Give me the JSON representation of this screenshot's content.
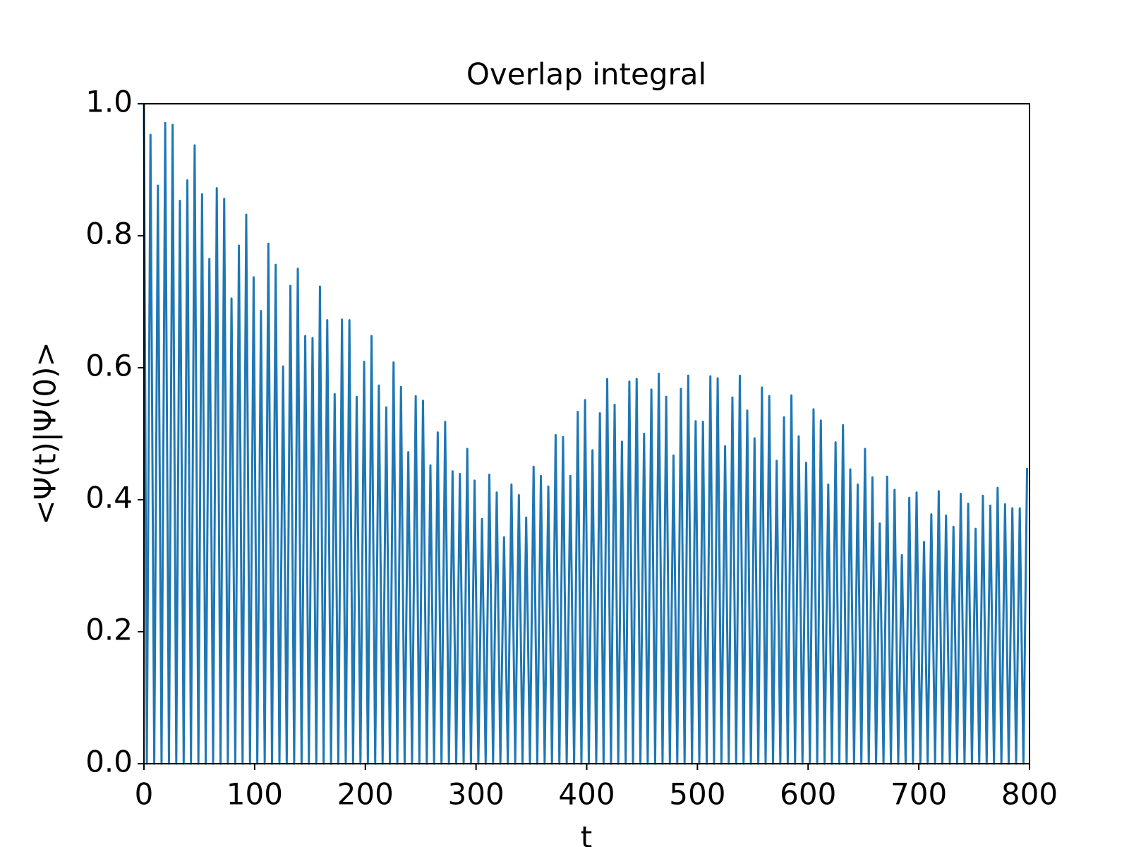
{
  "chart_data": {
    "type": "line",
    "title": "Overlap integral",
    "xlabel": "t",
    "ylabel": "<Ψ(t)|Ψ(0)>",
    "color": "#1f77b4",
    "xlim": [
      0,
      800
    ],
    "xticks": [
      0,
      100,
      200,
      300,
      400,
      500,
      600,
      700,
      800
    ],
    "ylim": [
      0,
      1
    ],
    "yticks": [
      {
        "value": 0,
        "label": "0.0"
      },
      0.2,
      0.4,
      0.6,
      0.8,
      {
        "value": 1,
        "label": "1.0"
      }
    ],
    "grid": false,
    "x": [
      0,
      2.6,
      5.9,
      9.3,
      12.6,
      15.9,
      19.2,
      22.6,
      25.9,
      29.2,
      32.5,
      35.9,
      39.2,
      42.5,
      45.8,
      49.2,
      52.5,
      55.8,
      59.1,
      62.5,
      65.8,
      69.2,
      72.5,
      75.8,
      79.1,
      82.5,
      85.8,
      89.1,
      92.4,
      95.8,
      99.1,
      102.4,
      105.7,
      109.1,
      112.4,
      115.7,
      119.0,
      122.4,
      125.7,
      129.0,
      132.3,
      135.7,
      139.0,
      142.4,
      145.7,
      149.0,
      152.3,
      155.7,
      159.0,
      162.3,
      165.6,
      169.0,
      172.3,
      175.6,
      178.9,
      182.3,
      185.6,
      188.9,
      192.2,
      195.6,
      198.9,
      202.3,
      205.6,
      208.9,
      212.2,
      215.6,
      218.9,
      222.2,
      225.5,
      228.9,
      232.2,
      235.5,
      238.8,
      242.2,
      245.5,
      248.8,
      252.1,
      255.5,
      258.8,
      262.1,
      265.4,
      268.8,
      272.1,
      275.5,
      278.8,
      282.1,
      285.4,
      288.8,
      292.1,
      295.4,
      298.7,
      302.1,
      305.4,
      308.7,
      312.0,
      315.4,
      318.7,
      322.0,
      325.3,
      328.7,
      332.0,
      335.4,
      338.7,
      342.0,
      345.3,
      348.7,
      352.0,
      355.3,
      358.6,
      362.0,
      365.3,
      368.6,
      371.9,
      375.3,
      378.6,
      381.9,
      385.2,
      388.6,
      391.9,
      395.2,
      398.5,
      401.9,
      405.2,
      408.6,
      411.9,
      415.2,
      418.5,
      421.9,
      425.2,
      428.5,
      431.8,
      435.2,
      438.5,
      441.8,
      445.1,
      448.5,
      451.8,
      455.1,
      458.4,
      461.8,
      465.1,
      468.5,
      471.8,
      475.1,
      478.4,
      481.8,
      485.1,
      488.4,
      491.7,
      495.1,
      498.4,
      501.7,
      505.0,
      508.4,
      511.7,
      515.0,
      518.3,
      521.7,
      525.0,
      528.3,
      531.6,
      535.0,
      538.3,
      541.7,
      545.0,
      548.3,
      551.6,
      555.0,
      558.3,
      561.6,
      564.9,
      568.3,
      571.6,
      574.9,
      578.2,
      581.6,
      584.9,
      588.2,
      591.5,
      594.9,
      598.2,
      601.6,
      604.9,
      608.2,
      611.5,
      614.9,
      618.2,
      621.5,
      624.8,
      628.2,
      631.5,
      634.8,
      638.1,
      641.5,
      644.8,
      648.1,
      651.4,
      654.8,
      658.1,
      661.4,
      664.7,
      668.1,
      671.4,
      674.8,
      678.1,
      681.4,
      684.7,
      688.1,
      691.4,
      694.7,
      698.0,
      701.4,
      704.7,
      708.0,
      711.3,
      714.7,
      718.0,
      721.3,
      724.6,
      728.0,
      731.3,
      734.6,
      737.9,
      741.3,
      744.6,
      748.0,
      751.3,
      754.6,
      757.9,
      761.3,
      764.6,
      767.9,
      771.2,
      774.6,
      777.9,
      781.2,
      784.5,
      787.9,
      791.2,
      794.5,
      797.8
    ],
    "values": [
      1,
      0,
      0.953,
      0,
      0.876,
      0,
      0.971,
      0,
      0.968,
      0,
      0.853,
      0,
      0.884,
      0,
      0.937,
      0,
      0.863,
      0,
      0.765,
      0,
      0.872,
      0,
      0.856,
      0,
      0.705,
      0,
      0.785,
      0,
      0.832,
      0,
      0.737,
      0,
      0.686,
      0,
      0.788,
      0,
      0.756,
      0,
      0.602,
      0,
      0.724,
      0,
      0.75,
      0,
      0.648,
      0,
      0.645,
      0,
      0.723,
      0,
      0.672,
      0,
      0.56,
      0,
      0.673,
      0,
      0.672,
      0,
      0.556,
      0,
      0.609,
      0,
      0.648,
      0,
      0.573,
      0,
      0.54,
      0,
      0.608,
      0,
      0.571,
      0,
      0.472,
      0,
      0.557,
      0,
      0.55,
      0,
      0.452,
      0,
      0.502,
      0,
      0.518,
      0,
      0.443,
      0,
      0.439,
      0,
      0.477,
      0,
      0.429,
      0,
      0.371,
      0,
      0.438,
      0,
      0.411,
      0,
      0.343,
      0,
      0.423,
      0,
      0.407,
      0,
      0.373,
      0,
      0.45,
      0,
      0.436,
      0,
      0.42,
      0,
      0.498,
      0,
      0.495,
      0,
      0.436,
      0,
      0.533,
      0,
      0.551,
      0,
      0.475,
      0,
      0.531,
      0,
      0.583,
      0,
      0.544,
      0,
      0.488,
      0,
      0.579,
      0,
      0.583,
      0,
      0.5,
      0,
      0.567,
      0,
      0.591,
      0,
      0.556,
      0,
      0.467,
      0,
      0.568,
      0,
      0.588,
      0,
      0.519,
      0,
      0.518,
      0,
      0.587,
      0,
      0.584,
      0,
      0.481,
      0,
      0.555,
      0,
      0.588,
      0,
      0.535,
      0,
      0.493,
      0,
      0.57,
      0,
      0.557,
      0,
      0.459,
      0,
      0.525,
      0,
      0.558,
      0,
      0.496,
      0,
      0.456,
      0,
      0.537,
      0,
      0.52,
      0,
      0.423,
      0,
      0.487,
      0,
      0.513,
      0,
      0.446,
      0,
      0.423,
      0,
      0.477,
      0,
      0.434,
      0,
      0.364,
      0,
      0.435,
      0,
      0.415,
      0,
      0.316,
      0,
      0.403,
      0,
      0.411,
      0,
      0.336,
      0,
      0.378,
      0,
      0.413,
      0,
      0.376,
      0,
      0.359,
      0,
      0.409,
      0,
      0.394,
      0,
      0.356,
      0,
      0.406,
      0,
      0.391,
      0,
      0.418,
      0,
      0.393,
      0,
      0.387,
      0,
      0.387,
      0,
      0.448
    ]
  }
}
